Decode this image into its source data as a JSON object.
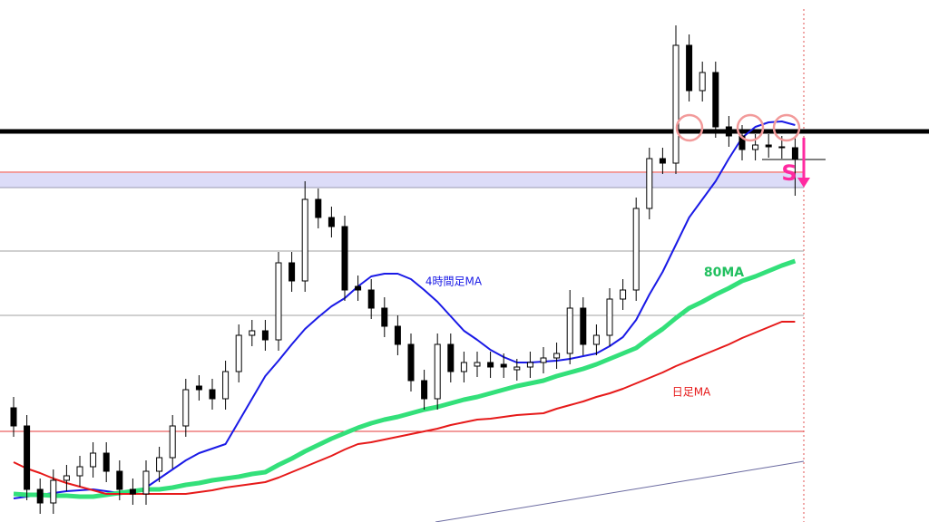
{
  "chart_data": {
    "type": "candlestick",
    "ylim": [
      0,
      576
    ],
    "open": [
      126,
      106,
      36,
      21,
      46,
      51,
      61,
      76,
      56,
      36,
      31,
      56,
      71,
      106,
      150,
      146,
      136,
      166,
      206,
      211,
      201,
      286,
      266,
      356,
      336,
      326,
      260,
      256,
      236,
      216,
      196,
      156,
      136,
      196,
      166,
      172,
      176,
      174,
      168,
      171,
      176,
      181,
      186,
      236,
      196,
      206,
      246,
      256,
      346,
      401,
      396,
      526,
      476,
      496,
      436,
      426,
      411,
      416,
      414,
      413
    ],
    "high": [
      138,
      118,
      48,
      58,
      63,
      73,
      88,
      88,
      68,
      48,
      68,
      83,
      118,
      158,
      162,
      158,
      178,
      218,
      223,
      223,
      298,
      298,
      376,
      368,
      348,
      338,
      272,
      268,
      248,
      228,
      208,
      168,
      208,
      208,
      188,
      188,
      188,
      186,
      180,
      188,
      193,
      198,
      256,
      248,
      218,
      258,
      268,
      358,
      413,
      413,
      548,
      538,
      508,
      508,
      448,
      438,
      428,
      428,
      426,
      425
    ],
    "low": [
      94,
      24,
      9,
      9,
      34,
      39,
      49,
      44,
      24,
      19,
      19,
      44,
      59,
      94,
      134,
      124,
      124,
      154,
      194,
      189,
      189,
      254,
      254,
      324,
      314,
      244,
      244,
      224,
      204,
      184,
      144,
      124,
      124,
      154,
      154,
      160,
      159,
      159,
      156,
      159,
      164,
      169,
      174,
      184,
      184,
      194,
      234,
      244,
      334,
      384,
      384,
      464,
      464,
      424,
      414,
      399,
      399,
      402,
      401,
      360
    ],
    "close": [
      106,
      36,
      21,
      46,
      51,
      61,
      76,
      56,
      36,
      31,
      56,
      71,
      106,
      146,
      146,
      136,
      166,
      206,
      211,
      201,
      286,
      266,
      356,
      336,
      326,
      256,
      256,
      236,
      216,
      196,
      156,
      136,
      196,
      166,
      176,
      176,
      171,
      171,
      171,
      176,
      181,
      186,
      236,
      196,
      206,
      246,
      256,
      346,
      401,
      396,
      526,
      476,
      496,
      436,
      426,
      411,
      416,
      414,
      413,
      401
    ],
    "series": [
      {
        "name": "4時間足MA",
        "color": "#1a1ae6",
        "values": [
          26,
          28,
          30,
          32,
          34,
          35,
          36,
          34,
          32,
          31,
          38,
          48,
          58,
          68,
          76,
          81,
          86,
          111,
          136,
          161,
          178,
          196,
          213,
          226,
          238,
          247,
          260,
          271,
          274,
          274,
          268,
          256,
          243,
          227,
          211,
          201,
          190,
          182,
          176,
          176,
          177,
          178,
          180,
          183,
          186,
          194,
          204,
          223,
          251,
          276,
          306,
          336,
          356,
          376,
          401,
          424,
          436,
          441,
          442,
          438
        ]
      },
      {
        "name": "80MA",
        "color": "#33e07a",
        "values": [
          31,
          30,
          30,
          29,
          29,
          28,
          28,
          30,
          32,
          34,
          36,
          36,
          38,
          41,
          43,
          46,
          48,
          50,
          53,
          55,
          63,
          70,
          78,
          85,
          92,
          98,
          104,
          109,
          113,
          116,
          120,
          124,
          127,
          131,
          135,
          138,
          142,
          146,
          150,
          153,
          156,
          161,
          165,
          169,
          174,
          180,
          186,
          192,
          203,
          213,
          225,
          236,
          243,
          251,
          258,
          266,
          271,
          277,
          283,
          288
        ]
      },
      {
        "name": "日足MA",
        "color": "#e61a1a",
        "values": [
          66,
          59,
          54,
          48,
          43,
          39,
          35,
          31,
          31,
          31,
          31,
          31,
          31,
          31,
          33,
          35,
          38,
          40,
          42,
          44,
          49,
          55,
          61,
          67,
          73,
          80,
          86,
          88,
          91,
          94,
          97,
          100,
          103,
          107,
          110,
          113,
          114,
          116,
          118,
          119,
          120,
          125,
          129,
          133,
          138,
          142,
          147,
          153,
          159,
          165,
          172,
          178,
          184,
          190,
          196,
          203,
          209,
          215,
          221,
          221
        ]
      }
    ],
    "levels": [
      {
        "value": 431,
        "color": "#000000"
      },
      {
        "value": 386,
        "color": "#e63a3a"
      },
      {
        "value": 369,
        "color": "#9a9ab0"
      },
      {
        "value": 299,
        "color": "#a0a0a0"
      },
      {
        "value": 228,
        "color": "#a0a0a0"
      },
      {
        "value": 100,
        "color": "#e63a3a"
      }
    ],
    "signal": "S"
  }
}
